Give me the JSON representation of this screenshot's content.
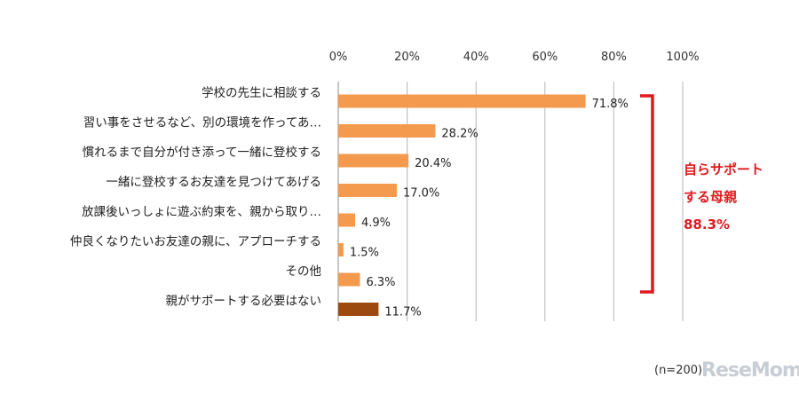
{
  "chart_data": {
    "type": "bar",
    "orientation": "horizontal",
    "categories": [
      "学校の先生に相談する",
      "習い事をさせるなど、別の環境を作ってあ…",
      "慣れるまで自分が付き添って一緒に登校する",
      "一緒に登校するお友達を見つけてあげる",
      "放課後いっしょに遊ぶ約束を、親から取り…",
      "仲良くなりたいお友達の親に、アプローチする",
      "その他",
      "親がサポートする必要はない"
    ],
    "values": [
      71.8,
      28.2,
      20.4,
      17.0,
      4.9,
      1.5,
      6.3,
      11.7
    ],
    "data_labels": [
      "71.8%",
      "28.2%",
      "20.4%",
      "17.0%",
      "4.9%",
      "1.5%",
      "6.3%",
      "11.7%"
    ],
    "bar_colors": [
      "#f39a4e",
      "#f39a4e",
      "#f39a4e",
      "#f39a4e",
      "#f39a4e",
      "#f39a4e",
      "#f39a4e",
      "#9c4a10"
    ],
    "xlim": [
      0,
      100
    ],
    "xticks": [
      "0%",
      "20%",
      "40%",
      "60%",
      "80%",
      "100%"
    ],
    "grid": true,
    "bracket_color": "#e0191e"
  },
  "annotation": {
    "line1": "自らサポート",
    "line2": "する母親",
    "line3": "88.3%"
  },
  "note": "(n=200)",
  "logo": "ReseMom"
}
